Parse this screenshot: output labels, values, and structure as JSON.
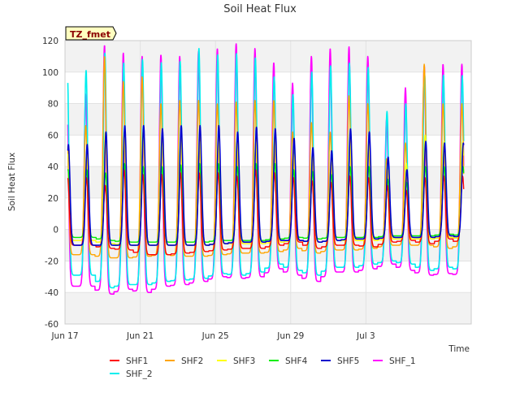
{
  "colors": {
    "SHF1": "#ff0000",
    "SHF2": "#ffa500",
    "SHF3": "#ffff00",
    "SHF4": "#00ee00",
    "SHF5": "#0000cc",
    "SHF_1": "#ff00ff",
    "SHF_2": "#00eeee",
    "badge_bg": "#ffffc0",
    "badge_text": "#8b0000",
    "band": "#f2f2f2",
    "axis": "#cccccc",
    "text": "#333333"
  },
  "chart_data": {
    "type": "line",
    "title": "Soil Heat Flux",
    "xlabel": "Time",
    "ylabel": "Soil Heat Flux",
    "badge": "TZ_fmet",
    "ylim": [
      -60,
      120
    ],
    "yticks": [
      -60,
      -40,
      -20,
      0,
      20,
      40,
      60,
      80,
      100,
      120
    ],
    "xlim_days": [
      0,
      21.6
    ],
    "xticks": [
      {
        "label": "Jun 17",
        "day": 0
      },
      {
        "label": "Jun 21",
        "day": 4
      },
      {
        "label": "Jun 25",
        "day": 8
      },
      {
        "label": "Jun 29",
        "day": 12
      },
      {
        "label": "Jul 3",
        "day": 16
      }
    ],
    "legend": [
      "SHF1",
      "SHF2",
      "SHF3",
      "SHF4",
      "SHF5",
      "SHF_1",
      "SHF_2"
    ],
    "daily_peaks": {
      "SHF1": [
        33,
        28,
        38,
        35,
        35,
        36,
        36,
        36,
        34,
        38,
        36,
        33,
        31,
        30,
        34,
        33,
        28,
        25,
        33,
        34
      ],
      "SHF2": [
        66,
        110,
        94,
        97,
        80,
        82,
        82,
        80,
        81,
        82,
        82,
        62,
        68,
        62,
        85,
        80,
        45,
        55,
        105,
        80
      ],
      "SHF3": [
        48,
        62,
        62,
        62,
        55,
        56,
        56,
        56,
        56,
        56,
        58,
        48,
        47,
        44,
        55,
        55,
        38,
        42,
        60,
        56
      ],
      "SHF4": [
        38,
        36,
        42,
        40,
        40,
        41,
        42,
        42,
        40,
        42,
        42,
        38,
        37,
        35,
        40,
        40,
        32,
        30,
        40,
        40
      ],
      "SHF5": [
        54,
        62,
        66,
        66,
        64,
        66,
        66,
        66,
        62,
        65,
        64,
        58,
        52,
        50,
        64,
        62,
        46,
        38,
        56,
        55
      ],
      "SHF_1": [
        86,
        117,
        112,
        110,
        111,
        110,
        113,
        115,
        118,
        115,
        106,
        93,
        110,
        115,
        116,
        110,
        70,
        90,
        104,
        105
      ],
      "SHF_2": [
        101,
        112,
        106,
        108,
        106,
        107,
        115,
        111,
        112,
        109,
        97,
        86,
        100,
        104,
        106,
        103,
        75,
        80,
        99,
        98
      ]
    },
    "nightly_troughs": {
      "SHF1": [
        -10,
        -12,
        -13,
        -16,
        -16,
        -15,
        -14,
        -13,
        -12,
        -12,
        -10,
        -8,
        -12,
        -10,
        -10,
        -11,
        -8,
        -7,
        -9,
        -6
      ],
      "SHF2": [
        -16,
        -18,
        -18,
        -17,
        -16,
        -17,
        -17,
        -16,
        -15,
        -15,
        -14,
        -12,
        -15,
        -13,
        -13,
        -12,
        -10,
        -10,
        -10,
        -12
      ],
      "SHF3": [
        -7,
        -9,
        -10,
        -10,
        -10,
        -10,
        -10,
        -9,
        -9,
        -9,
        -8,
        -7,
        -8,
        -7,
        -7,
        -7,
        -6,
        -6,
        -6,
        -5
      ],
      "SHF4": [
        -5,
        -7,
        -8,
        -8,
        -8,
        -8,
        -8,
        -7,
        -7,
        -7,
        -6,
        -5,
        -6,
        -5,
        -5,
        -5,
        -4,
        -4,
        -4,
        -3
      ],
      "SHF5": [
        -10,
        -10,
        -10,
        -10,
        -10,
        -10,
        -10,
        -9,
        -8,
        -8,
        -7,
        -7,
        -8,
        -7,
        -6,
        -6,
        -5,
        -5,
        -5,
        -4
      ],
      "SHF_1": [
        -36,
        -41,
        -38,
        -40,
        -36,
        -35,
        -33,
        -30,
        -31,
        -30,
        -25,
        -29,
        -33,
        -27,
        -27,
        -25,
        -22,
        -26,
        -29,
        -28
      ],
      "SHF_2": [
        -29,
        -37,
        -35,
        -35,
        -33,
        -32,
        -31,
        -28,
        -29,
        -27,
        -22,
        -26,
        -29,
        -24,
        -24,
        -22,
        -20,
        -22,
        -26,
        -24
      ]
    },
    "first_peak_day": 1.1
  }
}
